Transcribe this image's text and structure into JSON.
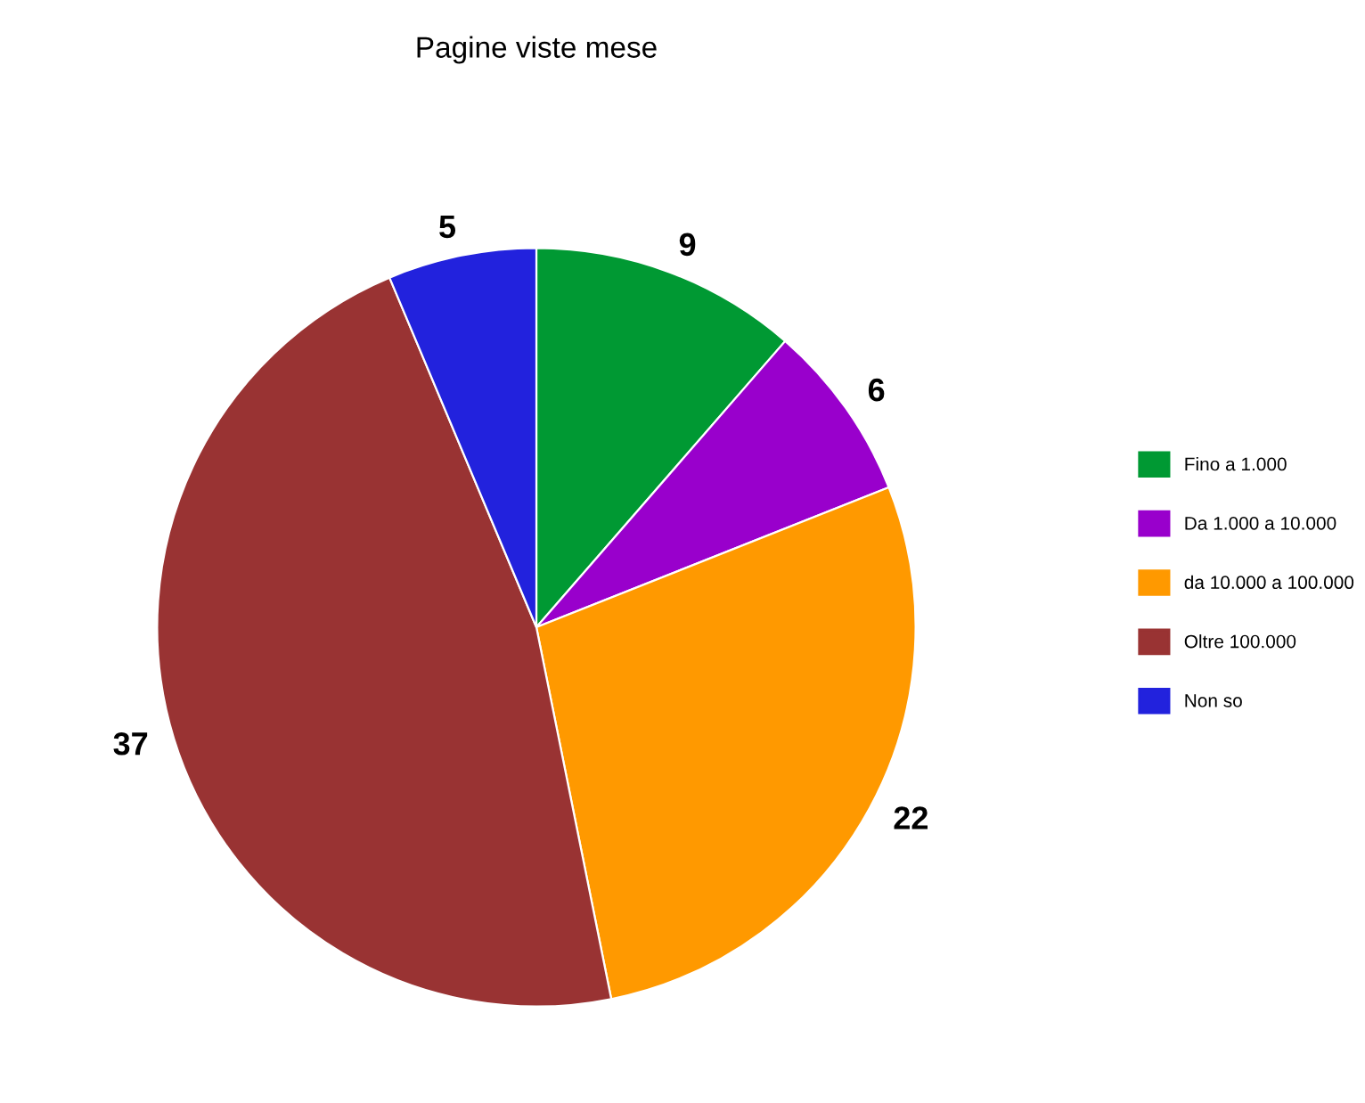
{
  "chart_data": {
    "type": "pie",
    "title": "Pagine viste mese",
    "categories": [
      "Fino a 1.000",
      "Da 1.000 a 10.000",
      "da 10.000 a 100.000",
      "Oltre 100.000",
      "Non so"
    ],
    "values": [
      9,
      6,
      22,
      37,
      5
    ],
    "colors": [
      "#009933",
      "#9900cc",
      "#ff9900",
      "#993333",
      "#2222dd"
    ],
    "data_labels": true,
    "legend": "right"
  }
}
